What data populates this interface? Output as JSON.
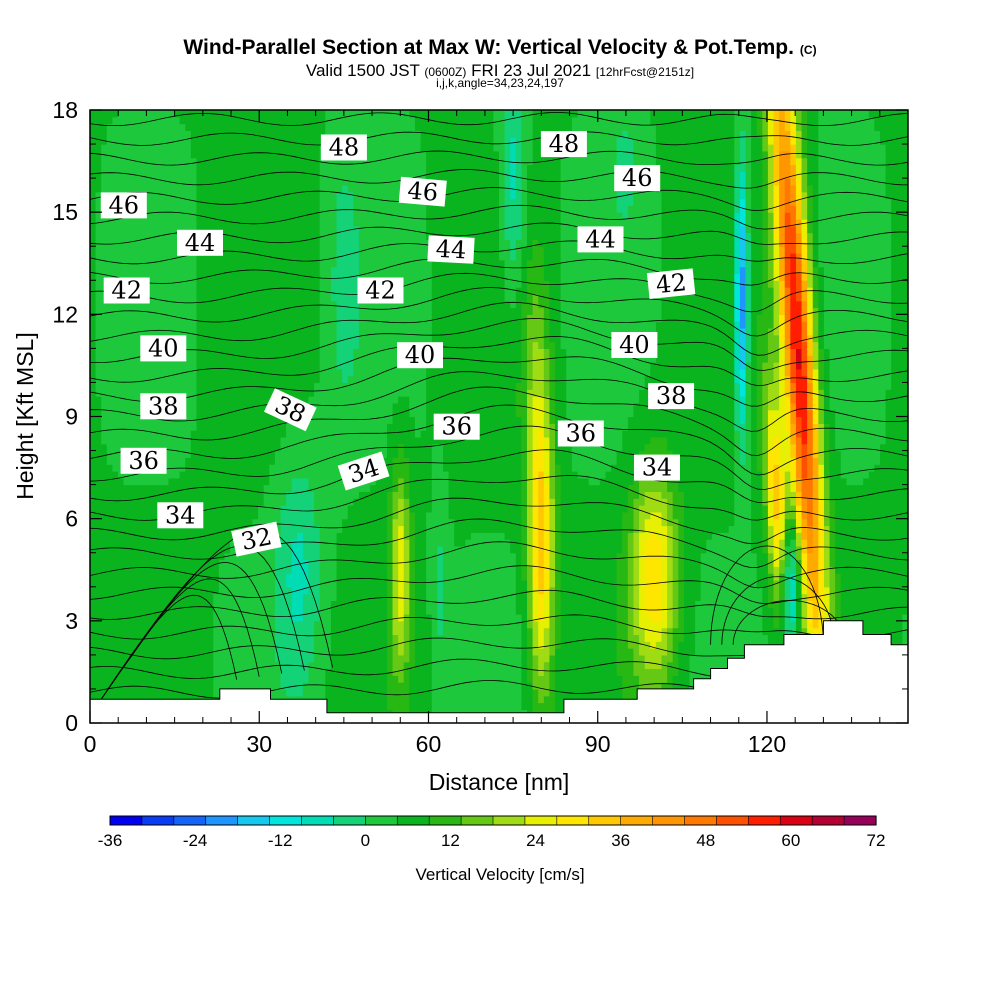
{
  "header": {
    "title": "Wind-Parallel Section at Max W: Vertical Velocity & Pot.Temp.",
    "copyright": "(C)",
    "valid_prefix": "Valid 1500 JST",
    "valid_zulu": "(0600Z)",
    "valid_date": "FRI 23 Jul 2021",
    "forecast": "[12hrFcst@2151z]",
    "indices": "i,j,k,angle=34,23,24,197"
  },
  "chart_data": {
    "type": "heatmap",
    "xlabel": "Distance [nm]",
    "ylabel": "Height [Kft MSL]",
    "xlim": [
      0,
      145
    ],
    "ylim": [
      0,
      18
    ],
    "xticks": [
      0,
      30,
      60,
      90,
      120
    ],
    "yticks": [
      0,
      3,
      6,
      9,
      12,
      15,
      18
    ],
    "grid": false,
    "colorbar": {
      "label": "Vertical Velocity [cm/s]",
      "ticks": [
        -36,
        -24,
        -12,
        0,
        12,
        24,
        36,
        48,
        60,
        72
      ],
      "min": -36,
      "max": 72,
      "step": 4.5,
      "colors": [
        "#0000f0",
        "#0a3cf5",
        "#1464fa",
        "#1e96ff",
        "#14c8f0",
        "#00e6dc",
        "#00dcb4",
        "#14d278",
        "#1ec83c",
        "#0ab41e",
        "#28b814",
        "#64c814",
        "#a0dc14",
        "#e6f000",
        "#ffe600",
        "#ffc800",
        "#ffaa00",
        "#ff9600",
        "#ff7800",
        "#ff5000",
        "#ff1e00",
        "#dc0014",
        "#b40032",
        "#96005a",
        "#6e0082",
        "#500096"
      ]
    },
    "terrain_kft": [
      [
        0,
        0.7
      ],
      [
        23,
        0.7
      ],
      [
        23,
        1.0
      ],
      [
        32,
        1.0
      ],
      [
        32,
        0.7
      ],
      [
        42,
        0.7
      ],
      [
        42,
        0.3
      ],
      [
        84,
        0.3
      ],
      [
        84,
        0.7
      ],
      [
        97,
        0.7
      ],
      [
        97,
        1.0
      ],
      [
        107,
        1.0
      ],
      [
        107,
        1.3
      ],
      [
        110,
        1.3
      ],
      [
        110,
        1.6
      ],
      [
        113,
        1.6
      ],
      [
        113,
        1.9
      ],
      [
        116,
        1.9
      ],
      [
        116,
        2.3
      ],
      [
        120,
        2.3
      ],
      [
        120,
        2.3
      ],
      [
        123,
        2.3
      ],
      [
        123,
        2.6
      ],
      [
        130,
        2.6
      ],
      [
        130,
        3.0
      ],
      [
        137,
        3.0
      ],
      [
        137,
        2.6
      ],
      [
        142,
        2.6
      ],
      [
        142,
        2.3
      ],
      [
        145,
        2.3
      ]
    ],
    "wcenters": [
      {
        "x": 125.5,
        "y": 11.0,
        "sx": 2.0,
        "sy": 6.5,
        "amp": 55,
        "tilt": -0.4
      },
      {
        "x": 122.0,
        "y": 6.0,
        "sx": 1.4,
        "sy": 2.8,
        "amp": 30,
        "tilt": -0.35
      },
      {
        "x": 115.5,
        "y": 12.5,
        "sx": 0.8,
        "sy": 2.8,
        "amp": -28,
        "tilt": 0
      },
      {
        "x": 124.0,
        "y": 4.0,
        "sx": 1.3,
        "sy": 1.6,
        "amp": -30,
        "tilt": 0
      },
      {
        "x": 100.0,
        "y": 4.3,
        "sx": 3.0,
        "sy": 2.2,
        "amp": 26,
        "tilt": 0
      },
      {
        "x": 80.0,
        "y": 5.0,
        "sx": 1.6,
        "sy": 3.0,
        "amp": 28,
        "tilt": 0
      },
      {
        "x": 55.0,
        "y": 4.5,
        "sx": 1.3,
        "sy": 2.2,
        "amp": 20,
        "tilt": 0
      },
      {
        "x": 79.0,
        "y": 10.0,
        "sx": 1.8,
        "sy": 2.8,
        "amp": 10,
        "tilt": 0
      },
      {
        "x": 37.0,
        "y": 4.5,
        "sx": 3.0,
        "sy": 2.5,
        "amp": -10,
        "tilt": 0
      },
      {
        "x": 75.0,
        "y": 16.0,
        "sx": 1.6,
        "sy": 2.5,
        "amp": -12,
        "tilt": 0
      },
      {
        "x": 62.0,
        "y": 4.0,
        "sx": 1.0,
        "sy": 2.0,
        "amp": -6,
        "tilt": 0
      },
      {
        "x": 45.0,
        "y": 13.0,
        "sx": 2.0,
        "sy": 3.0,
        "amp": -6,
        "tilt": 0
      },
      {
        "x": 95.0,
        "y": 16.5,
        "sx": 2.0,
        "sy": 1.5,
        "amp": -5,
        "tilt": 0
      }
    ],
    "theta_labels": [
      {
        "value": "48",
        "x": 45,
        "y": 16.9,
        "rot": 0
      },
      {
        "value": "48",
        "x": 84,
        "y": 17.0,
        "rot": 0
      },
      {
        "value": "46",
        "x": 6,
        "y": 15.2,
        "rot": 0
      },
      {
        "value": "46",
        "x": 59,
        "y": 15.6,
        "rot": 5
      },
      {
        "value": "46",
        "x": 97,
        "y": 16.0,
        "rot": 0
      },
      {
        "value": "44",
        "x": 19.5,
        "y": 14.1,
        "rot": 0
      },
      {
        "value": "44",
        "x": 64,
        "y": 13.9,
        "rot": 3
      },
      {
        "value": "44",
        "x": 90.5,
        "y": 14.2,
        "rot": 0
      },
      {
        "value": "42",
        "x": 6.5,
        "y": 12.7,
        "rot": 0
      },
      {
        "value": "42",
        "x": 51.5,
        "y": 12.7,
        "rot": 0
      },
      {
        "value": "42",
        "x": 103,
        "y": 12.9,
        "rot": -6
      },
      {
        "value": "40",
        "x": 13,
        "y": 11.0,
        "rot": 0
      },
      {
        "value": "40",
        "x": 58.5,
        "y": 10.8,
        "rot": 0
      },
      {
        "value": "40",
        "x": 96.5,
        "y": 11.1,
        "rot": 0
      },
      {
        "value": "38",
        "x": 13,
        "y": 9.3,
        "rot": 0
      },
      {
        "value": "38",
        "x": 35.5,
        "y": 9.2,
        "rot": 25
      },
      {
        "value": "38",
        "x": 103,
        "y": 9.6,
        "rot": 0
      },
      {
        "value": "36",
        "x": 9.5,
        "y": 7.7,
        "rot": 0
      },
      {
        "value": "36",
        "x": 65,
        "y": 8.7,
        "rot": 0
      },
      {
        "value": "36",
        "x": 87,
        "y": 8.5,
        "rot": 0
      },
      {
        "value": "34",
        "x": 16,
        "y": 6.1,
        "rot": 0
      },
      {
        "value": "34",
        "x": 48.5,
        "y": 7.4,
        "rot": -18
      },
      {
        "value": "34",
        "x": 100.5,
        "y": 7.5,
        "rot": 0
      },
      {
        "value": "32",
        "x": 29.5,
        "y": 5.4,
        "rot": -12
      }
    ]
  }
}
